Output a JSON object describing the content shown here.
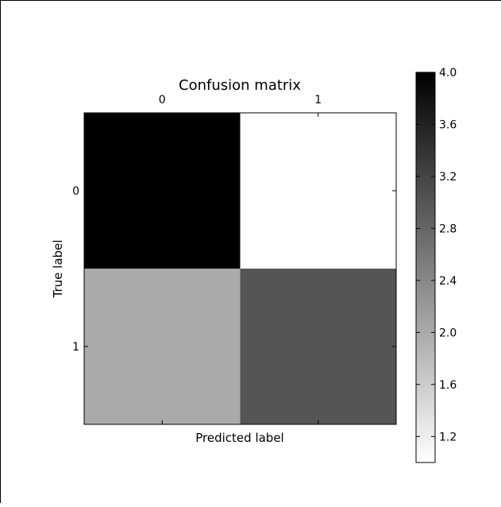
{
  "chart_data": {
    "type": "heatmap",
    "title": "Confusion matrix",
    "xlabel": "Predicted label",
    "ylabel": "True label",
    "x_categories": [
      "0",
      "1"
    ],
    "y_categories": [
      "0",
      "1"
    ],
    "values": [
      [
        4,
        1
      ],
      [
        2,
        3
      ]
    ],
    "colormap": "binary",
    "colorbar": {
      "range": [
        1,
        4
      ],
      "ticks": [
        "1.2",
        "1.6",
        "2.0",
        "2.4",
        "2.8",
        "3.2",
        "3.6",
        "4.0"
      ]
    },
    "grid": false,
    "legend": "none"
  }
}
